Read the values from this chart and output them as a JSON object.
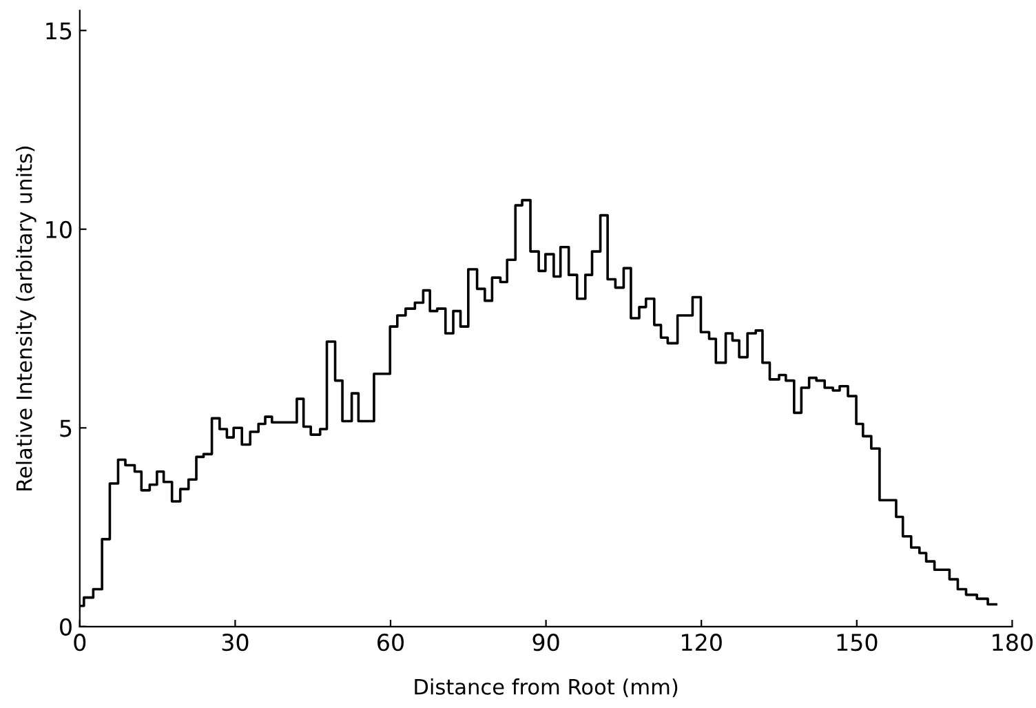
{
  "chart_data": {
    "type": "step",
    "xlabel": "Distance from Root (mm)",
    "ylabel": "Relative Intensity (arbitary units)",
    "x": [
      0,
      0.8,
      2.6,
      4.3,
      5.8,
      7.4,
      8.8,
      10.6,
      11.9,
      13.5,
      14.9,
      16.2,
      17.8,
      19.4,
      21,
      22.5,
      23.9,
      25.5,
      27,
      28.4,
      29.7,
      31.3,
      32.9,
      34.5,
      35.8,
      37.1,
      41.9,
      43.2,
      44.6,
      46.4,
      47.7,
      49.3,
      50.7,
      52.5,
      53.8,
      56.8,
      59.9,
      61.3,
      62.9,
      64.7,
      66.3,
      67.6,
      69,
      70.6,
      72.1,
      73.5,
      75,
      76.7,
      78.2,
      79.6,
      81.2,
      82.5,
      84.1,
      85.4,
      87,
      88.6,
      89.9,
      91.5,
      92.8,
      94.4,
      96,
      97.6,
      98.9,
      100.5,
      101.9,
      103.4,
      105,
      106.4,
      108,
      109.3,
      110.9,
      112.2,
      113.5,
      115.4,
      118.3,
      119.9,
      121.5,
      122.8,
      124.7,
      126,
      127.3,
      128.9,
      130.5,
      131.8,
      133.2,
      135,
      136.3,
      137.9,
      139.3,
      140.8,
      142.2,
      143.8,
      145.4,
      146.7,
      148.3,
      149.9,
      151.2,
      152.8,
      154.4,
      157.6,
      158.9,
      160.5,
      162.1,
      163.4,
      165,
      167.9,
      169.5,
      171.1,
      173.2,
      175.3,
      176.9
    ],
    "values": [
      0.52,
      0.73,
      0.94,
      2.2,
      3.6,
      4.2,
      4.06,
      3.9,
      3.43,
      3.57,
      3.9,
      3.64,
      3.15,
      3.46,
      3.7,
      4.27,
      4.34,
      5.24,
      4.97,
      4.76,
      5.0,
      4.58,
      4.9,
      5.1,
      5.28,
      5.14,
      5.73,
      5.03,
      4.83,
      4.97,
      7.17,
      6.19,
      5.17,
      5.87,
      5.17,
      6.36,
      7.55,
      7.83,
      8.0,
      8.15,
      8.46,
      7.94,
      8.0,
      7.38,
      7.94,
      7.55,
      8.99,
      8.5,
      8.2,
      8.78,
      8.67,
      9.23,
      10.6,
      10.73,
      9.44,
      8.95,
      9.37,
      8.81,
      9.55,
      8.85,
      8.25,
      8.85,
      9.44,
      10.35,
      8.74,
      8.53,
      9.02,
      7.76,
      8.04,
      8.25,
      7.59,
      7.27,
      7.13,
      7.83,
      8.29,
      7.41,
      7.24,
      6.64,
      7.38,
      7.2,
      6.78,
      7.38,
      7.45,
      6.64,
      6.22,
      6.33,
      6.19,
      5.38,
      6.01,
      6.26,
      6.19,
      6.01,
      5.94,
      6.05,
      5.8,
      5.1,
      4.79,
      4.48,
      3.18,
      2.76,
      2.27,
      1.99,
      1.85,
      1.64,
      1.43,
      1.19,
      0.94,
      0.8,
      0.7,
      0.56,
      0.56
    ],
    "color": "#000000",
    "xlim": [
      0,
      180
    ],
    "ylim": [
      0,
      15.5
    ],
    "xticks": [
      0,
      30,
      60,
      90,
      120,
      150,
      180
    ],
    "yticks": [
      0,
      5,
      10,
      15
    ],
    "grid": false
  }
}
